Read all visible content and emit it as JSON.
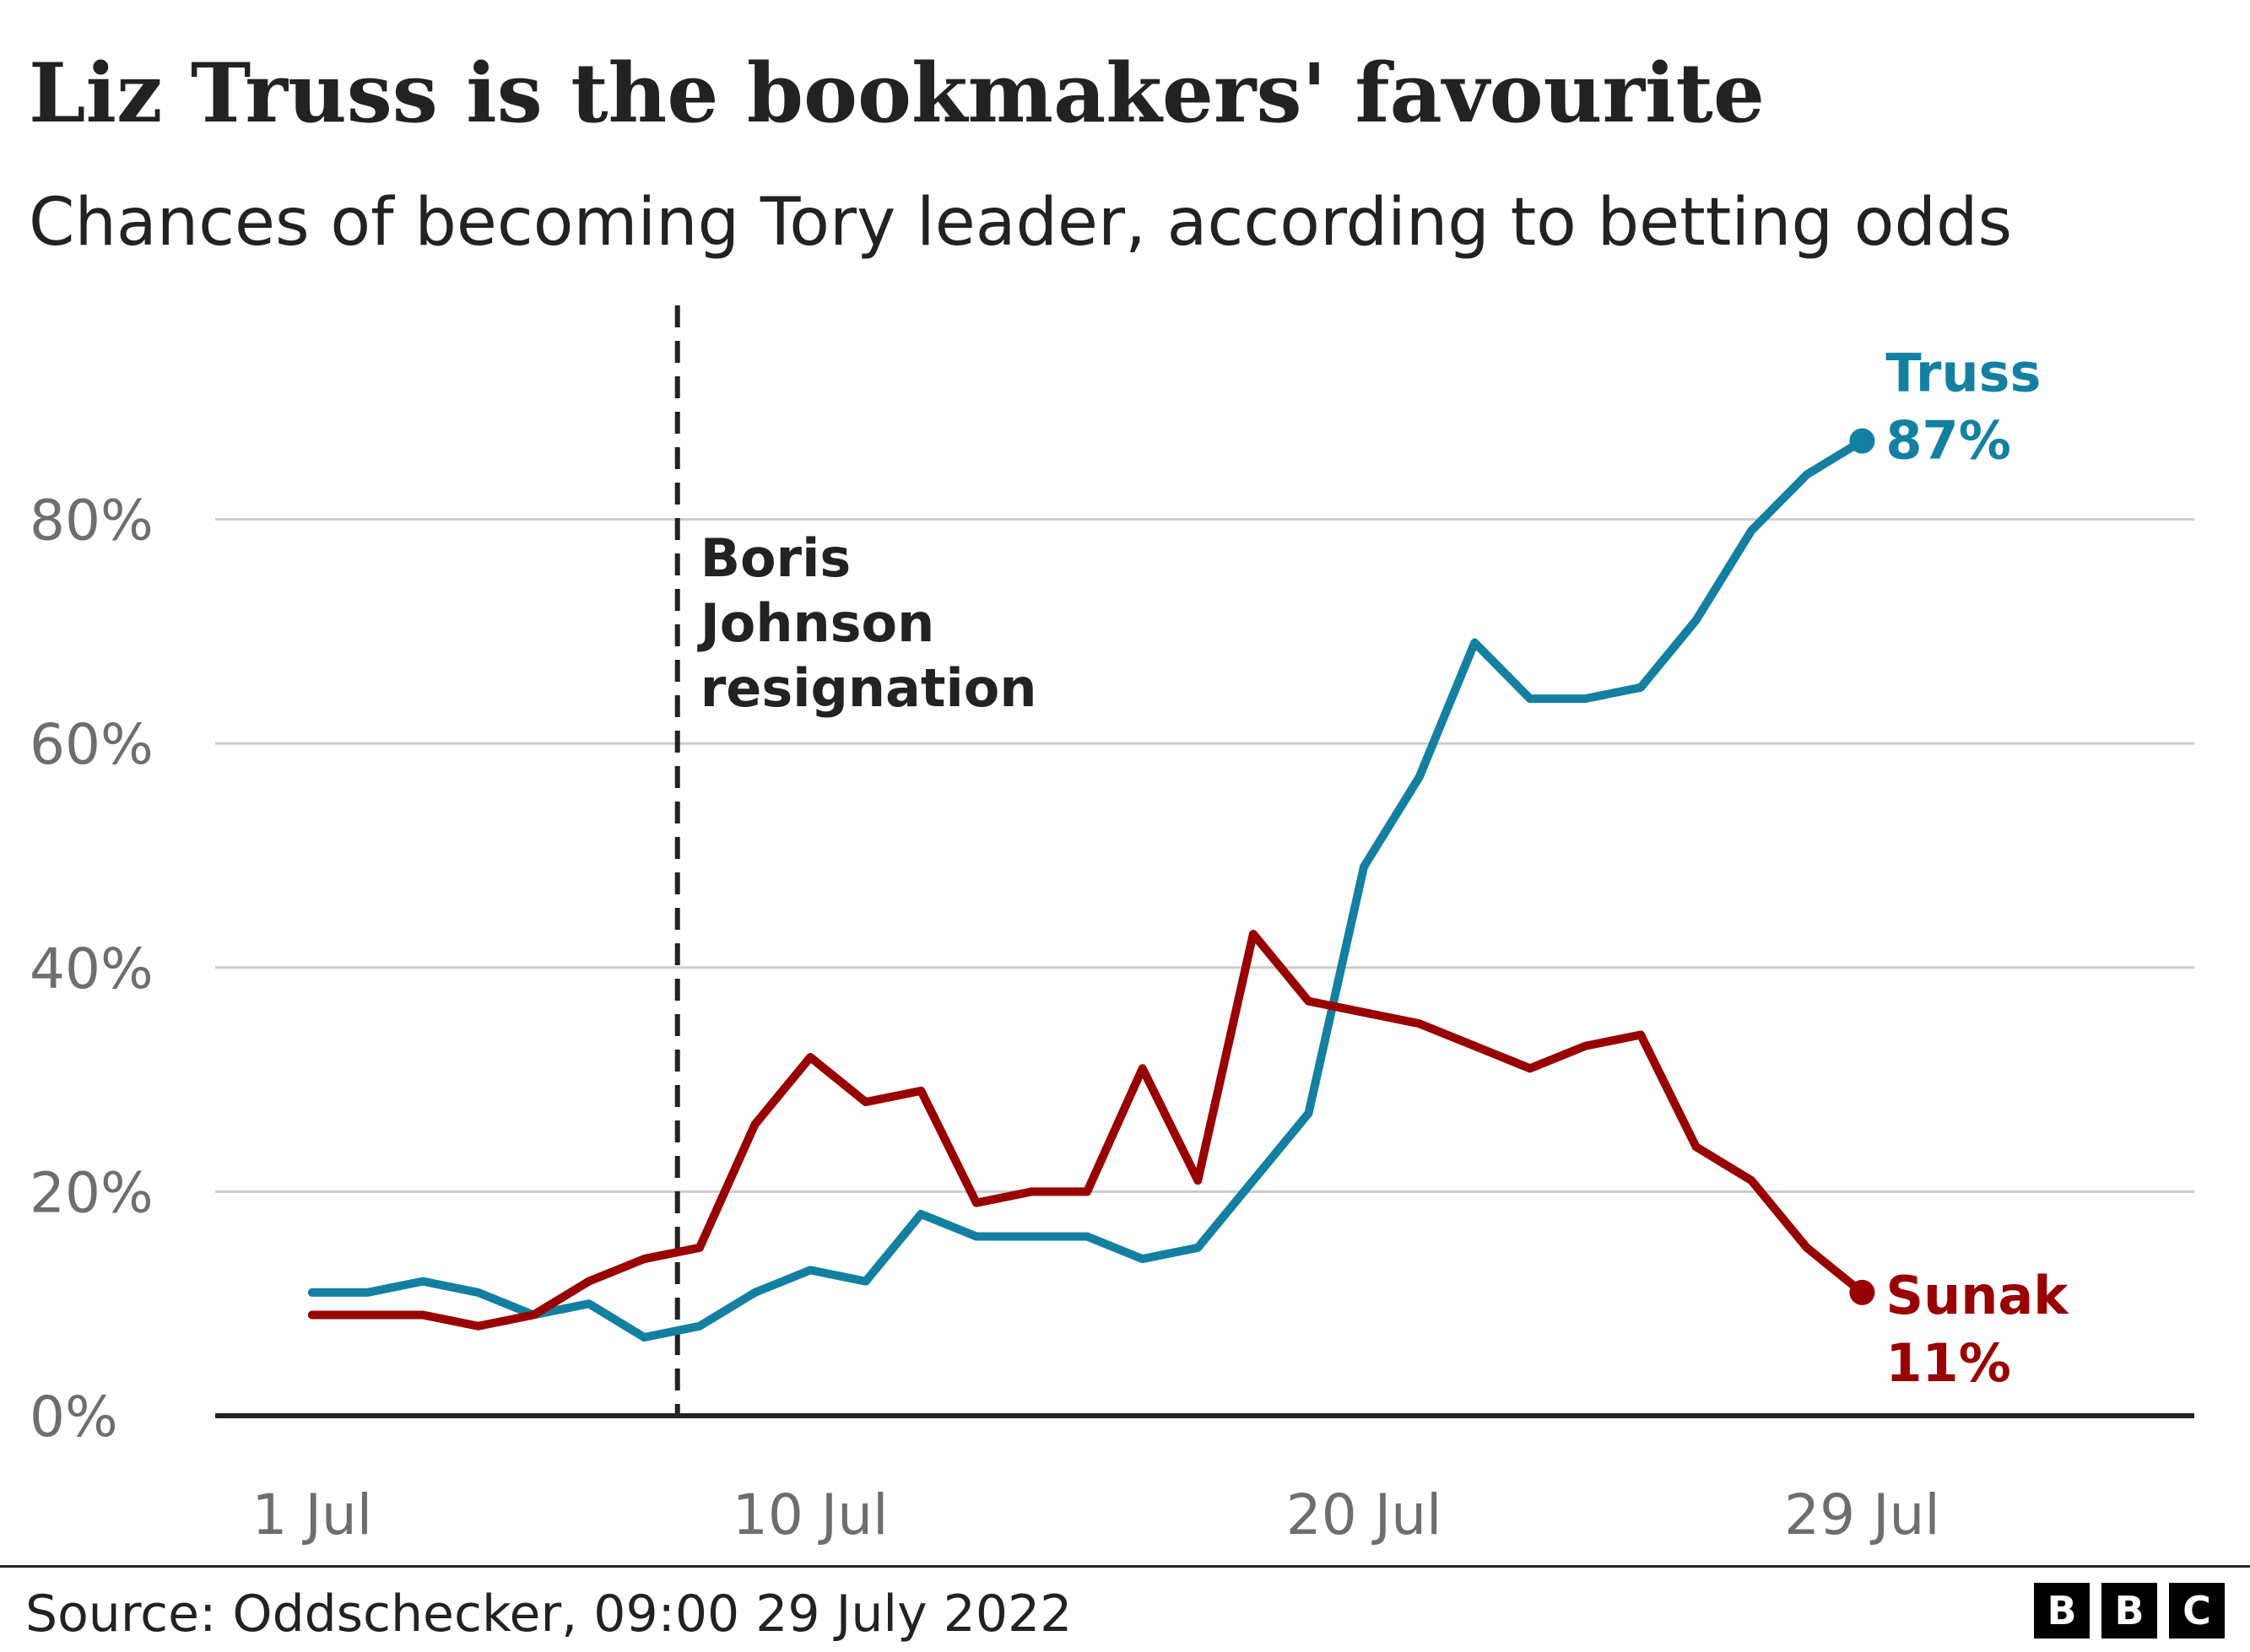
{
  "title": "Liz Truss is the bookmakers' favourite",
  "subtitle": "Chances of becoming Tory leader, according to betting odds",
  "source": "Source: Oddschecker, 09:00 29 July 2022",
  "logo": [
    "B",
    "B",
    "C"
  ],
  "chart_data": {
    "type": "line",
    "x_unit": "July 2022 day",
    "x": [
      1,
      2,
      3,
      4,
      5,
      6,
      7,
      8,
      9,
      10,
      11,
      12,
      13,
      14,
      15,
      16,
      17,
      18,
      19,
      20,
      21,
      22,
      23,
      24,
      25,
      26,
      27,
      28,
      29
    ],
    "xlim": [
      -0.75,
      35
    ],
    "ylim": [
      0,
      100
    ],
    "x_ticks": [
      {
        "value": 1,
        "label": "1 Jul"
      },
      {
        "value": 10,
        "label": "10 Jul"
      },
      {
        "value": 20,
        "label": "20 Jul"
      },
      {
        "value": 29,
        "label": "29 Jul"
      }
    ],
    "y_ticks": [
      {
        "value": 0,
        "label": "0%"
      },
      {
        "value": 20,
        "label": "20%"
      },
      {
        "value": 40,
        "label": "40%"
      },
      {
        "value": 60,
        "label": "60%"
      },
      {
        "value": 80,
        "label": "80%"
      }
    ],
    "grid": "horizontal",
    "series": [
      {
        "name": "Truss",
        "color": "#1380A1",
        "values": [
          11,
          11,
          12,
          11,
          9,
          10,
          7,
          8,
          11,
          13,
          12,
          18,
          16,
          16,
          16,
          14,
          15,
          21,
          27,
          49,
          57,
          69,
          64,
          64,
          65,
          71,
          79,
          84,
          87
        ],
        "end_label": "87%"
      },
      {
        "name": "Sunak",
        "color": "#990000",
        "values": [
          9,
          9,
          9,
          8,
          9,
          12,
          14,
          15,
          26,
          32,
          28,
          29,
          19,
          20,
          20,
          31,
          21,
          43,
          37,
          36,
          35,
          33,
          31,
          33,
          34,
          24,
          21,
          15,
          11
        ],
        "end_label": "11%"
      }
    ],
    "annotations": [
      {
        "x": 7.6,
        "lines": [
          "Boris",
          "Johnson",
          "resignation"
        ],
        "style": "dashed-vertical",
        "color": "#222222"
      }
    ]
  }
}
